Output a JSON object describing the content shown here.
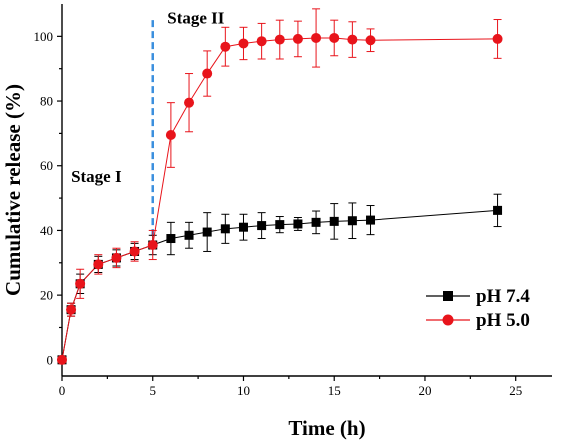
{
  "chart_data": {
    "type": "line",
    "xlabel": "Time (h)",
    "ylabel": "Cumulative release (%)",
    "xlim": [
      0,
      27
    ],
    "ylim": [
      -5,
      110
    ],
    "xticks": [
      0,
      5,
      10,
      15,
      20,
      25
    ],
    "yticks": [
      0,
      20,
      40,
      60,
      80,
      100
    ],
    "grid": false,
    "legend_position": "bottom-right",
    "annotations": [
      {
        "text": "Stage I",
        "x": 0.5,
        "y": 55
      },
      {
        "text": "Stage II",
        "x": 5.8,
        "y": 104
      }
    ],
    "stage_divider": {
      "x": 5,
      "y_from": 35,
      "y_to": 105,
      "color": "#3b8fde",
      "style": "dashed"
    },
    "series": [
      {
        "name": "pH 7.4",
        "color": "#000000",
        "marker": "square",
        "x": [
          0,
          0.5,
          1,
          2,
          3,
          4,
          5,
          6,
          7,
          8,
          9,
          10,
          11,
          12,
          13,
          14,
          15,
          16,
          17,
          24
        ],
        "y": [
          0,
          15.5,
          23.5,
          29.5,
          31.5,
          33.5,
          35.5,
          37.5,
          38.5,
          39.5,
          40.5,
          41.0,
          41.5,
          41.8,
          42.0,
          42.5,
          42.8,
          43.0,
          43.2,
          46.2
        ],
        "err": [
          0.5,
          2.0,
          3.0,
          2.5,
          2.5,
          2.5,
          3.0,
          5.0,
          4.0,
          6.0,
          4.5,
          4.0,
          4.0,
          2.5,
          2.0,
          3.5,
          5.5,
          5.5,
          4.5,
          5.0
        ]
      },
      {
        "name": "pH 5.0",
        "color": "#e8141b",
        "marker": "circle",
        "x": [
          0,
          0.5,
          1,
          2,
          3,
          4,
          5,
          6,
          7,
          8,
          9,
          10,
          11,
          12,
          13,
          14,
          15,
          16,
          17,
          24
        ],
        "y": [
          0,
          15.5,
          23.5,
          29.5,
          31.5,
          33.5,
          35.5,
          69.5,
          79.5,
          88.5,
          96.8,
          97.8,
          98.5,
          99.0,
          99.2,
          99.5,
          99.5,
          99.0,
          98.8,
          99.2
        ],
        "err": [
          0.5,
          2.0,
          4.5,
          3.0,
          3.0,
          3.0,
          4.5,
          10.0,
          9.0,
          7.0,
          6.0,
          5.0,
          5.5,
          6.0,
          5.5,
          9.0,
          5.5,
          5.5,
          3.5,
          6.0
        ]
      }
    ]
  }
}
